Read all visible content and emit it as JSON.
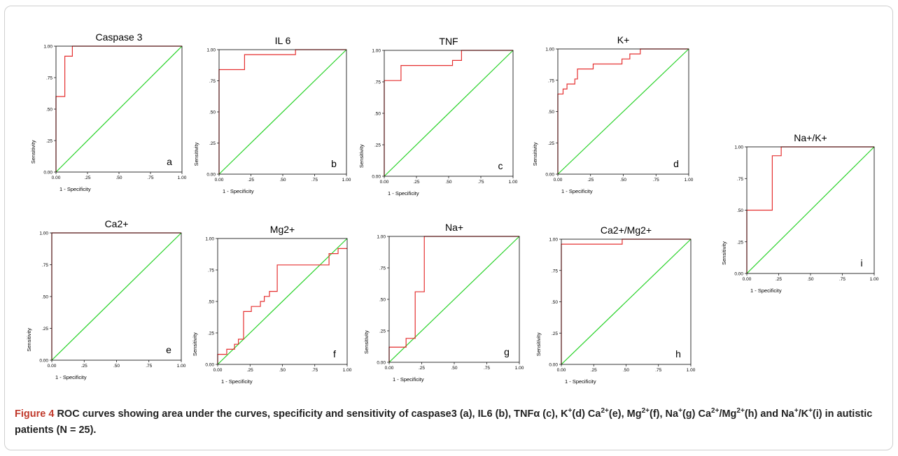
{
  "figure": {
    "colors": {
      "roc": "#e53030",
      "reference": "#28d228",
      "frame": "#000000"
    },
    "caption": {
      "label": "Figure 4",
      "text": "ROC curves showing area under the curves, specificity and sensitivity of caspase3 (a), IL6 (b), TNFα (c), K⁺(d) Ca²⁺(e), Mg²⁺(f), Na⁺(g) Ca²⁺/Mg²⁺(h) and Na⁺/K⁺(i) in autistic patients (N = 25).",
      "parts": [
        {
          "text": "ROC curves showing area under the curves, specificity and sensitivity of caspase3 (a), IL6 (b), TNF"
        },
        {
          "text": "α"
        },
        {
          "text": " (c), K"
        },
        {
          "text": "+",
          "sup": true
        },
        {
          "text": "(d) Ca"
        },
        {
          "text": "2+",
          "sup": true
        },
        {
          "text": "(e), Mg"
        },
        {
          "text": "2+",
          "sup": true
        },
        {
          "text": "(f), Na"
        },
        {
          "text": "+",
          "sup": true
        },
        {
          "text": "(g) Ca"
        },
        {
          "text": "2+",
          "sup": true
        },
        {
          "text": "/Mg"
        },
        {
          "text": "2+",
          "sup": true
        },
        {
          "text": "(h) and Na"
        },
        {
          "text": "+",
          "sup": true
        },
        {
          "text": "/K"
        },
        {
          "text": "+",
          "sup": true
        },
        {
          "text": "(i) in autistic patients (N = 25)."
        }
      ]
    }
  },
  "chart_data": [
    {
      "type": "line",
      "title": "Caspase 3",
      "panel_letter": "a",
      "xlabel": "1 - Specificity",
      "ylabel": "Sensitivity",
      "xlim": [
        0,
        1
      ],
      "ylim": [
        0,
        1
      ],
      "xticks": [
        "0.00",
        ".25",
        ".50",
        ".75",
        "1.00"
      ],
      "yticks": [
        "0.00",
        ".25",
        ".50",
        ".75",
        "1.00"
      ],
      "series": [
        {
          "x": [
            0,
            0,
            0.07,
            0.07,
            0.13,
            0.13,
            1
          ],
          "y": [
            0,
            0.6,
            0.6,
            0.92,
            0.92,
            1,
            1
          ]
        },
        {
          "x": [
            0,
            1
          ],
          "y": [
            0,
            1
          ]
        }
      ]
    },
    {
      "type": "line",
      "title": "IL 6",
      "panel_letter": "b",
      "xlabel": "1 - Specificity",
      "ylabel": "Sensitivity",
      "xlim": [
        0,
        1
      ],
      "ylim": [
        0,
        1
      ],
      "xticks": [
        "0.00",
        ".25",
        ".50",
        ".75",
        "1.00"
      ],
      "yticks": [
        "0.00",
        ".25",
        ".50",
        ".75",
        "1.00"
      ],
      "series": [
        {
          "x": [
            0,
            0,
            0.2,
            0.2,
            0.6,
            0.6,
            1
          ],
          "y": [
            0,
            0.84,
            0.84,
            0.96,
            0.96,
            1,
            1
          ]
        },
        {
          "x": [
            0,
            1
          ],
          "y": [
            0,
            1
          ]
        }
      ]
    },
    {
      "type": "line",
      "title": "TNF",
      "panel_letter": "c",
      "xlabel": "1 - Specificity",
      "ylabel": "Sensitivity",
      "xlim": [
        0,
        1
      ],
      "ylim": [
        0,
        1
      ],
      "xticks": [
        "0.00",
        ".25",
        ".50",
        ".75",
        "1.00"
      ],
      "yticks": [
        "0.00",
        ".25",
        ".50",
        ".75",
        "1.00"
      ],
      "series": [
        {
          "x": [
            0,
            0,
            0.13,
            0.13,
            0.53,
            0.53,
            0.6,
            0.6,
            1
          ],
          "y": [
            0,
            0.76,
            0.76,
            0.88,
            0.88,
            0.92,
            0.92,
            1,
            1
          ]
        },
        {
          "x": [
            0,
            1
          ],
          "y": [
            0,
            1
          ]
        }
      ]
    },
    {
      "type": "line",
      "title": "K+",
      "panel_letter": "d",
      "xlabel": "1 - Specificity",
      "ylabel": "Sensitivity",
      "xlim": [
        0,
        1
      ],
      "ylim": [
        0,
        1
      ],
      "xticks": [
        "0.00",
        ".25",
        ".50",
        ".75",
        "1.00"
      ],
      "yticks": [
        "0.00",
        ".25",
        ".50",
        ".75",
        "1.00"
      ],
      "series": [
        {
          "x": [
            0,
            0,
            0.04,
            0.04,
            0.07,
            0.07,
            0.13,
            0.13,
            0.15,
            0.15,
            0.27,
            0.27,
            0.49,
            0.49,
            0.55,
            0.55,
            0.63,
            0.63,
            1
          ],
          "y": [
            0,
            0.64,
            0.64,
            0.68,
            0.68,
            0.72,
            0.72,
            0.76,
            0.76,
            0.84,
            0.84,
            0.88,
            0.88,
            0.92,
            0.92,
            0.96,
            0.96,
            1,
            1
          ]
        },
        {
          "x": [
            0,
            1
          ],
          "y": [
            0,
            1
          ]
        }
      ]
    },
    {
      "type": "line",
      "title": "Ca2+",
      "panel_letter": "e",
      "xlabel": "1 - Specificity",
      "ylabel": "Sensitivity",
      "xlim": [
        0,
        1
      ],
      "ylim": [
        0,
        1
      ],
      "xticks": [
        "0.00",
        ".25",
        ".50",
        ".75",
        "1.00"
      ],
      "yticks": [
        "0.00",
        ".25",
        ".50",
        ".75",
        "1.00"
      ],
      "series": [
        {
          "x": [
            0,
            0,
            1
          ],
          "y": [
            0,
            1,
            1
          ]
        },
        {
          "x": [
            0,
            1
          ],
          "y": [
            0,
            1
          ]
        }
      ]
    },
    {
      "type": "line",
      "title": "Mg2+",
      "panel_letter": "f",
      "xlabel": "1 - Specificity",
      "ylabel": "Sensitivity",
      "xlim": [
        0,
        1
      ],
      "ylim": [
        0,
        1
      ],
      "xticks": [
        "0.00",
        ".25",
        ".50",
        ".75",
        "1.00"
      ],
      "yticks": [
        "0.00",
        ".25",
        ".50",
        ".75",
        "1.00"
      ],
      "series": [
        {
          "x": [
            0,
            0,
            0.07,
            0.07,
            0.13,
            0.13,
            0.16,
            0.16,
            0.2,
            0.2,
            0.26,
            0.26,
            0.33,
            0.33,
            0.36,
            0.36,
            0.4,
            0.4,
            0.46,
            0.46,
            0.86,
            0.86,
            0.93,
            0.93,
            1
          ],
          "y": [
            0,
            0.08,
            0.08,
            0.12,
            0.12,
            0.16,
            0.16,
            0.2,
            0.2,
            0.42,
            0.42,
            0.46,
            0.46,
            0.5,
            0.5,
            0.54,
            0.54,
            0.58,
            0.58,
            0.79,
            0.79,
            0.88,
            0.88,
            0.92,
            0.92
          ]
        },
        {
          "x": [
            0,
            1
          ],
          "y": [
            0,
            1
          ]
        }
      ]
    },
    {
      "type": "line",
      "title": "Na+",
      "panel_letter": "g",
      "xlabel": "1 - Specificity",
      "ylabel": "Sensitivity",
      "xlim": [
        0,
        1
      ],
      "ylim": [
        0,
        1
      ],
      "xticks": [
        "0.00",
        ".25",
        ".50",
        ".75",
        "1.00"
      ],
      "yticks": [
        "0.00",
        ".25",
        ".50",
        ".75",
        "1.00"
      ],
      "series": [
        {
          "x": [
            0,
            0,
            0.13,
            0.13,
            0.2,
            0.2,
            0.27,
            0.27,
            1
          ],
          "y": [
            0,
            0.12,
            0.12,
            0.19,
            0.19,
            0.56,
            0.56,
            1,
            1
          ]
        },
        {
          "x": [
            0,
            1
          ],
          "y": [
            0,
            1
          ]
        }
      ]
    },
    {
      "type": "line",
      "title": "Ca2+/Mg2+",
      "panel_letter": "h",
      "xlabel": "1 - Specificity",
      "ylabel": "Sensitivity",
      "xlim": [
        0,
        1
      ],
      "ylim": [
        0,
        1
      ],
      "xticks": [
        "0.00",
        ".25",
        ".50",
        ".75",
        "1.00"
      ],
      "yticks": [
        "0.00",
        ".25",
        ".50",
        ".75",
        "1.00"
      ],
      "series": [
        {
          "x": [
            0,
            0,
            0.47,
            0.47,
            1
          ],
          "y": [
            0,
            0.96,
            0.96,
            1,
            1
          ]
        },
        {
          "x": [
            0,
            1
          ],
          "y": [
            0,
            1
          ]
        }
      ]
    },
    {
      "type": "line",
      "title": "Na+/K+",
      "panel_letter": "i",
      "xlabel": "1 - Specificity",
      "ylabel": "Sensitivity",
      "xlim": [
        0,
        1
      ],
      "ylim": [
        0,
        1
      ],
      "xticks": [
        "0.00",
        ".25",
        ".50",
        ".75",
        "1.00"
      ],
      "yticks": [
        "0.00",
        ".25",
        ".50",
        ".75",
        "1.00"
      ],
      "series": [
        {
          "x": [
            0,
            0,
            0.2,
            0.2,
            0.27,
            0.27,
            1
          ],
          "y": [
            0,
            0.5,
            0.5,
            0.93,
            0.93,
            1,
            1
          ]
        },
        {
          "x": [
            0,
            1
          ],
          "y": [
            0,
            1
          ]
        }
      ]
    }
  ]
}
